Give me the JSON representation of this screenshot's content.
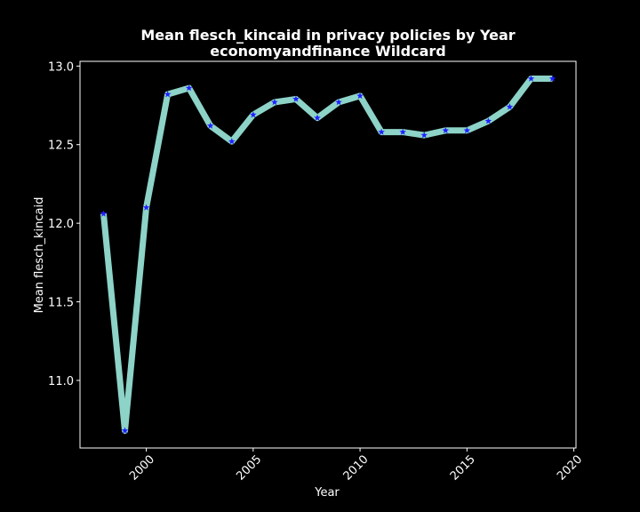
{
  "chart_data": {
    "type": "line",
    "title": "Mean flesch_kincaid in privacy policies by Year",
    "subtitle": "economyandfinance Wildcard",
    "xlabel": "Year",
    "ylabel": "Mean flesch_kincaid",
    "xlim": [
      1996.9,
      2020.1
    ],
    "ylim": [
      10.57,
      13.03
    ],
    "xticks": [
      2000,
      2005,
      2010,
      2015,
      2020
    ],
    "yticks": [
      11.0,
      11.5,
      12.0,
      12.5,
      13.0
    ],
    "grid": false,
    "series": [
      {
        "line_color": "#8dd3c7",
        "marker_color": "#1f1fff",
        "marker": "star",
        "x": [
          1998,
          1999,
          2000,
          2001,
          2002,
          2003,
          2004,
          2005,
          2006,
          2007,
          2008,
          2009,
          2010,
          2011,
          2012,
          2013,
          2014,
          2015,
          2016,
          2017,
          2018,
          2019
        ],
        "values": [
          12.06,
          10.68,
          12.1,
          12.82,
          12.86,
          12.62,
          12.52,
          12.69,
          12.77,
          12.79,
          12.67,
          12.77,
          12.81,
          12.58,
          12.58,
          12.56,
          12.59,
          12.59,
          12.65,
          12.74,
          12.92,
          12.92
        ]
      }
    ]
  },
  "colors": {
    "background": "#000000",
    "axes": "#ffffff",
    "text": "#ffffff"
  }
}
